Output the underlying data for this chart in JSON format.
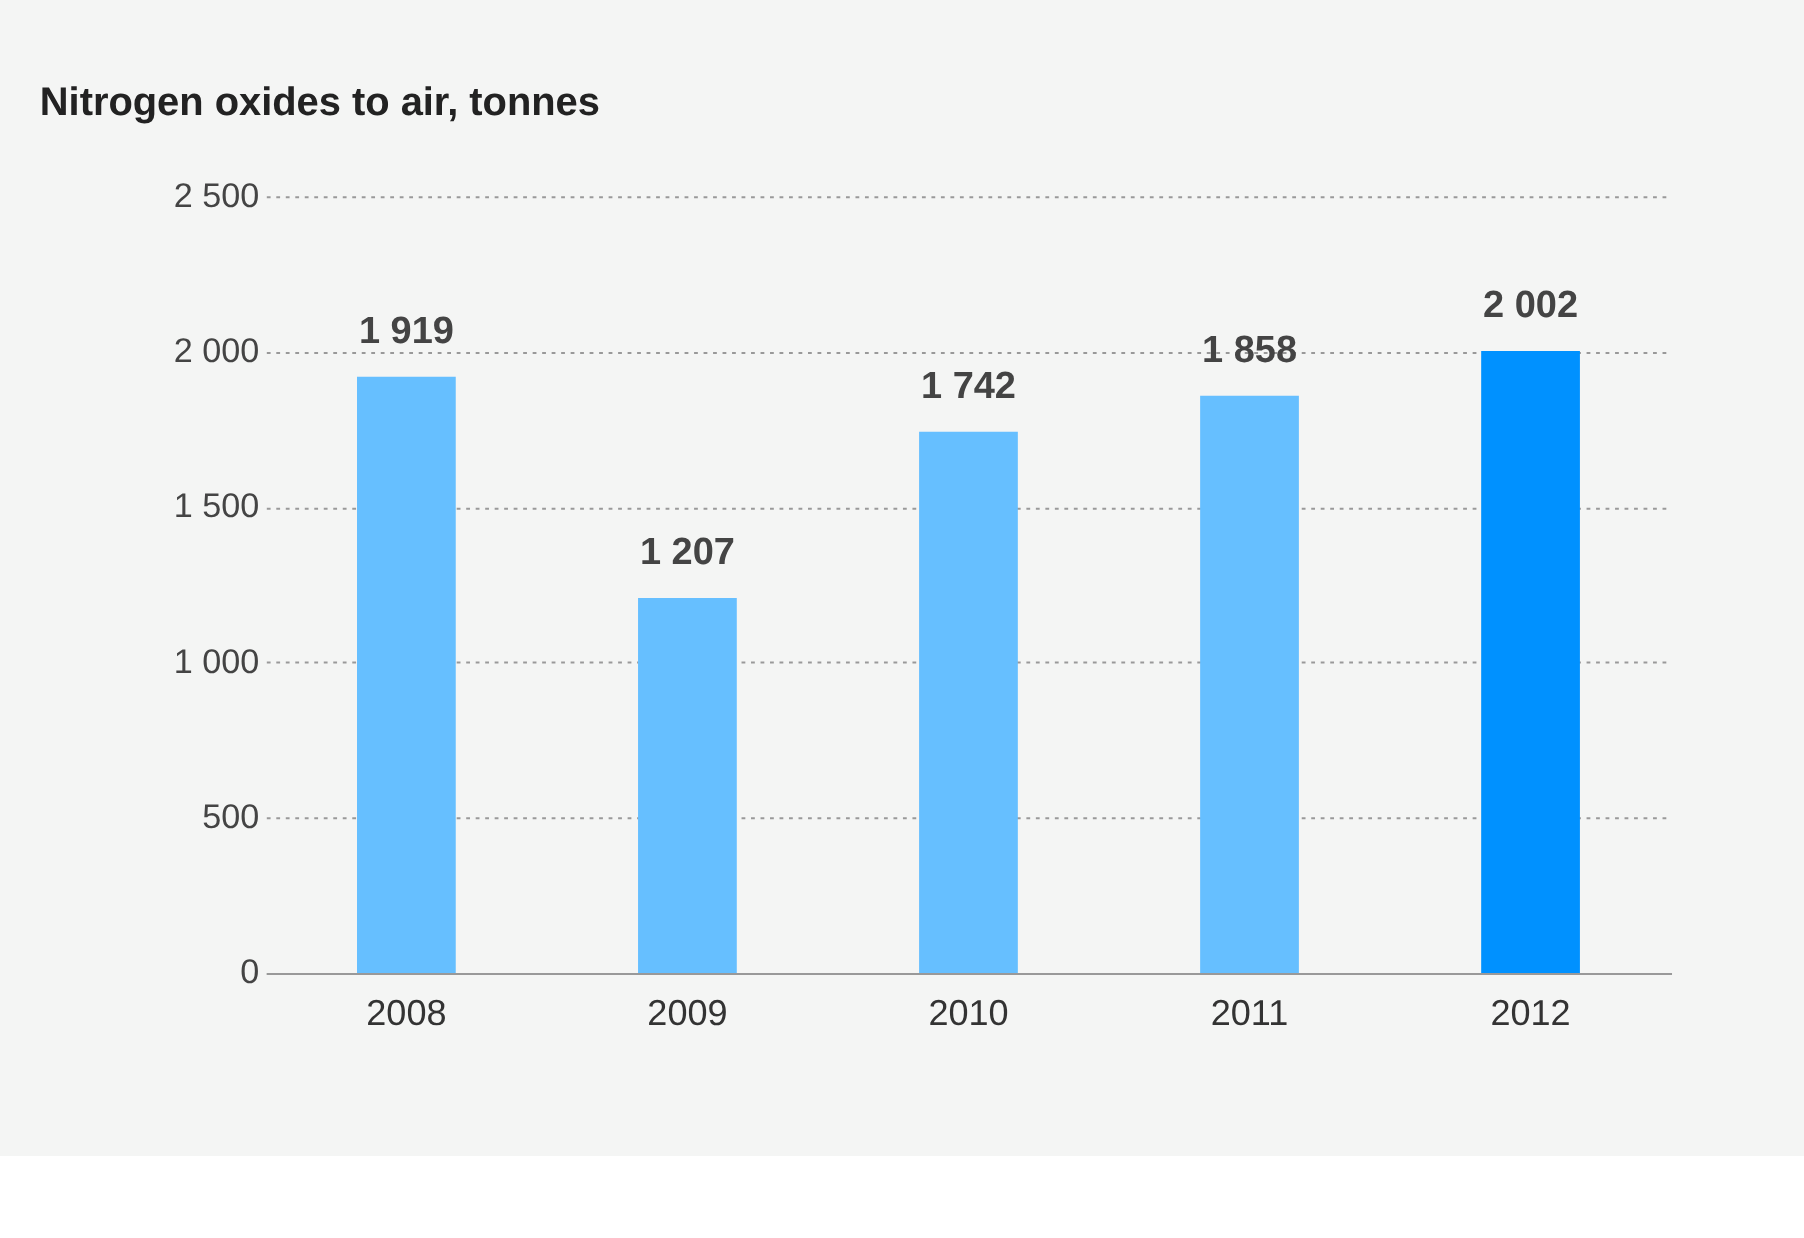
{
  "chart_data": {
    "type": "bar",
    "title": "Nitrogen oxides to air, tonnes",
    "categories": [
      "2008",
      "2009",
      "2010",
      "2011",
      "2012"
    ],
    "values": [
      1919,
      1207,
      1742,
      1858,
      2002
    ],
    "colors": [
      "#66bfff",
      "#66bfff",
      "#66bfff",
      "#66bfff",
      "#0091ff"
    ],
    "value_labels": [
      "1 919",
      "1 207",
      "1 742",
      "1 858",
      "2 002"
    ],
    "ylim": [
      0,
      2500
    ],
    "yticks": [
      0,
      500,
      {
        "value": 1000,
        "label": "1 000"
      },
      {
        "value": 1500,
        "label": "1 500"
      },
      {
        "value": 2000,
        "label": "2 000"
      },
      {
        "value": 2500,
        "label": "2 500"
      }
    ],
    "grid": "y",
    "legend": false
  }
}
